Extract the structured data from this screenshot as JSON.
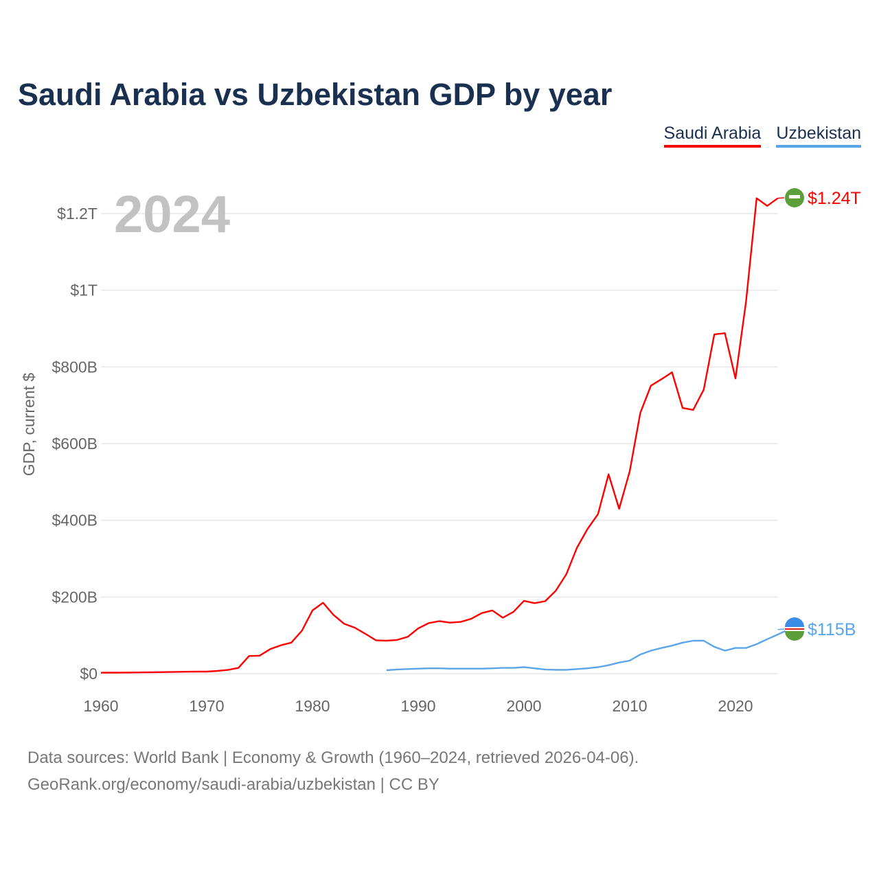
{
  "chart_data": {
    "type": "line",
    "title": "Saudi Arabia vs Uzbekistan GDP by year",
    "ylabel": "GDP, current $",
    "xlabel": "",
    "year_watermark": "2024",
    "xlim": [
      1960,
      2024
    ],
    "ylim": [
      0,
      1300
    ],
    "y_unit": "billions USD",
    "x_ticks": [
      1960,
      1970,
      1980,
      1990,
      2000,
      2010,
      2020
    ],
    "x_tick_labels": [
      "1960",
      "1970",
      "1980",
      "1990",
      "2000",
      "2010",
      "2020"
    ],
    "y_ticks": [
      0,
      200,
      400,
      600,
      800,
      1000,
      1200
    ],
    "y_tick_labels": [
      "$0",
      "$200B",
      "$400B",
      "$600B",
      "$800B",
      "$1T",
      "$1.2T"
    ],
    "grid": true,
    "legend_position": "top-right",
    "series": [
      {
        "name": "Saudi Arabia",
        "color": "#ff0000",
        "end_label": "$1.24T",
        "start_year": 1960,
        "values": [
          2.5,
          2.7,
          2.9,
          3.1,
          3.4,
          3.8,
          4.2,
          4.6,
          5.0,
          5.4,
          5.4,
          7.2,
          9.7,
          15,
          46,
          47,
          64,
          74,
          81,
          112,
          165,
          185,
          153,
          130,
          120,
          104,
          87,
          86,
          88,
          96,
          118,
          132,
          137,
          133,
          135,
          143,
          158,
          165,
          146,
          161,
          190,
          184,
          189,
          216,
          259,
          328,
          377,
          416,
          520,
          430,
          528,
          680,
          751,
          768,
          786,
          693,
          688,
          741,
          885,
          888,
          770,
          971,
          1240,
          1220,
          1240
        ]
      },
      {
        "name": "Uzbekistan",
        "color": "#5aa5ea",
        "end_label": "$115B",
        "start_year": 1987,
        "values": [
          9,
          11,
          12,
          13,
          14,
          14,
          13,
          13,
          13,
          13,
          14,
          15,
          15,
          17,
          14,
          11,
          10,
          10,
          12,
          14,
          17,
          22,
          29,
          34,
          50,
          60,
          67,
          73,
          81,
          86,
          86,
          70,
          60,
          67,
          67,
          77,
          90,
          102,
          115
        ]
      }
    ]
  },
  "footer": {
    "line1": "Data sources: World Bank | Economy & Growth (1960–2024, retrieved 2026-04-06).",
    "line2": "GeoRank.org/economy/saudi-arabia/uzbekistan | CC BY"
  }
}
